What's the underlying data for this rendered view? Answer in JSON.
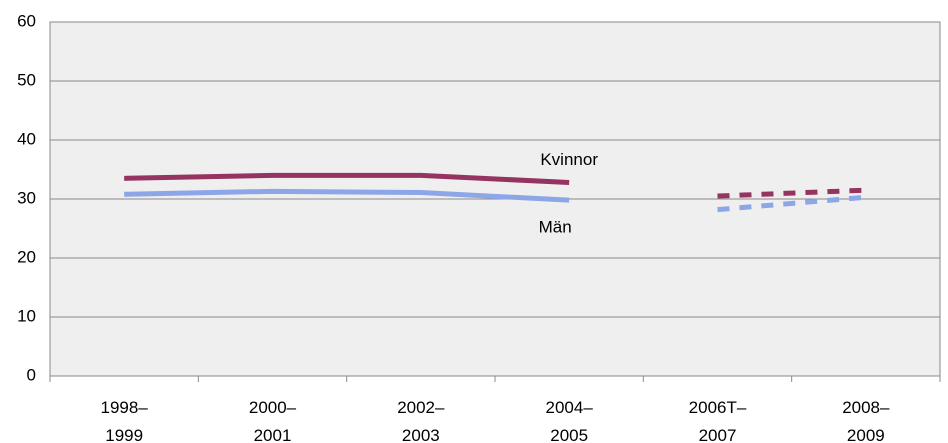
{
  "chart_data": {
    "type": "line",
    "categories": [
      "1998–\n1999",
      "2000–\n2001",
      "2002–\n2003",
      "2004–\n2005",
      "2006T–\n2007",
      "2008–\n2009"
    ],
    "series": [
      {
        "name": "Kvinnor",
        "color": "#953461",
        "values": [
          33.5,
          34,
          34,
          32.8,
          30.5,
          31.5
        ]
      },
      {
        "name": "Män",
        "color": "#8da6e8",
        "values": [
          30.8,
          31.3,
          31.1,
          29.8,
          28.2,
          30.3
        ]
      }
    ],
    "dashed_from": 4,
    "ylim": [
      0,
      60
    ],
    "yticks": [
      0,
      10,
      20,
      30,
      40,
      50,
      60
    ],
    "grid": true
  }
}
